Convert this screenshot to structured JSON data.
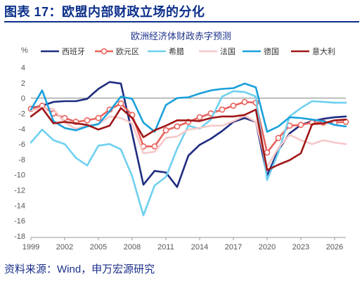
{
  "header": {
    "title": "图表 17：欧盟内部财政立场的分化",
    "source": "资料来源：Wind，申万宏源研究"
  },
  "chart_data": {
    "type": "line",
    "title": "欧洲经济体财政赤字预测",
    "ylabel": "%",
    "ylim": [
      -18,
      4
    ],
    "yticks": [
      4,
      2,
      0,
      -2,
      -4,
      -6,
      -8,
      -10,
      -12,
      -14,
      -16,
      -18
    ],
    "xlim": [
      1999,
      2027
    ],
    "xticks": [
      1999,
      2002,
      2005,
      2008,
      2011,
      2014,
      2017,
      2020,
      2023,
      2026
    ],
    "legend_position": "top",
    "x": [
      1999,
      2000,
      2001,
      2002,
      2003,
      2004,
      2005,
      2006,
      2007,
      2008,
      2009,
      2010,
      2011,
      2012,
      2013,
      2014,
      2015,
      2016,
      2017,
      2018,
      2019,
      2020,
      2021,
      2022,
      2023,
      2024,
      2025,
      2026,
      2027
    ],
    "series": [
      {
        "name": "西班牙",
        "color": "#1f2d80",
        "marker": "none",
        "values": [
          -1.3,
          -1.0,
          -0.5,
          -0.4,
          -0.4,
          -0.1,
          1.2,
          2.1,
          1.9,
          -4.6,
          -11.3,
          -9.5,
          -9.7,
          -11.6,
          -7.5,
          -6.1,
          -5.3,
          -4.3,
          -3.1,
          -2.6,
          -3.1,
          -10.1,
          -6.8,
          -4.6,
          -3.5,
          -3.0,
          -2.7,
          -2.5,
          -2.4
        ]
      },
      {
        "name": "欧元区",
        "color": "#e8635d",
        "marker": "circle",
        "values": [
          -1.4,
          -1.0,
          -2.0,
          -2.6,
          -3.1,
          -2.9,
          -2.6,
          -1.5,
          -0.7,
          -2.2,
          -6.3,
          -6.3,
          -4.2,
          -3.7,
          -3.1,
          -2.5,
          -2.0,
          -1.5,
          -1.0,
          -0.5,
          -0.6,
          -7.1,
          -5.2,
          -3.6,
          -3.5,
          -3.2,
          -3.2,
          -3.2,
          -3.1
        ]
      },
      {
        "name": "希腊",
        "color": "#6fd0f0",
        "marker": "none",
        "values": [
          -5.8,
          -4.1,
          -5.5,
          -6.0,
          -7.8,
          -8.8,
          -6.2,
          -6.0,
          -6.7,
          -10.2,
          -15.3,
          -11.4,
          -10.3,
          -6.6,
          -3.6,
          -4.0,
          -2.8,
          0.2,
          0.9,
          0.8,
          0.2,
          -10.7,
          -7.1,
          -2.4,
          -1.3,
          -0.4,
          -0.5,
          -0.6,
          -0.6
        ]
      },
      {
        "name": "法国",
        "color": "#f6c8c8",
        "marker": "none",
        "values": [
          -1.6,
          -1.3,
          -1.4,
          -3.2,
          -4.0,
          -3.6,
          -3.4,
          -2.4,
          -2.6,
          -3.3,
          -7.2,
          -7.0,
          -5.2,
          -5.0,
          -4.1,
          -3.9,
          -3.6,
          -3.6,
          -3.0,
          -2.3,
          -3.1,
          -9.0,
          -6.5,
          -4.8,
          -5.5,
          -6.0,
          -5.5,
          -5.8,
          -6.0
        ]
      },
      {
        "name": "德国",
        "color": "#1aa0db",
        "marker": "none",
        "values": [
          -1.5,
          1.0,
          -3.0,
          -3.9,
          -4.2,
          -3.7,
          -3.4,
          -1.7,
          0.2,
          -0.1,
          -3.2,
          -4.4,
          -0.9,
          0.0,
          0.1,
          0.6,
          1.0,
          1.2,
          1.3,
          1.9,
          1.4,
          -4.4,
          -3.7,
          -2.5,
          -2.6,
          -2.8,
          -3.0,
          -3.5,
          -3.7
        ]
      },
      {
        "name": "意大利",
        "color": "#a01618",
        "marker": "none",
        "values": [
          -2.4,
          -1.3,
          -3.3,
          -3.1,
          -3.3,
          -3.5,
          -4.1,
          -3.6,
          -1.3,
          -2.6,
          -5.1,
          -4.2,
          -3.6,
          -2.9,
          -2.9,
          -3.0,
          -2.6,
          -2.4,
          -2.4,
          -2.2,
          -1.5,
          -9.4,
          -8.7,
          -8.1,
          -7.2,
          -3.4,
          -3.3,
          -2.9,
          -2.8
        ]
      }
    ]
  }
}
